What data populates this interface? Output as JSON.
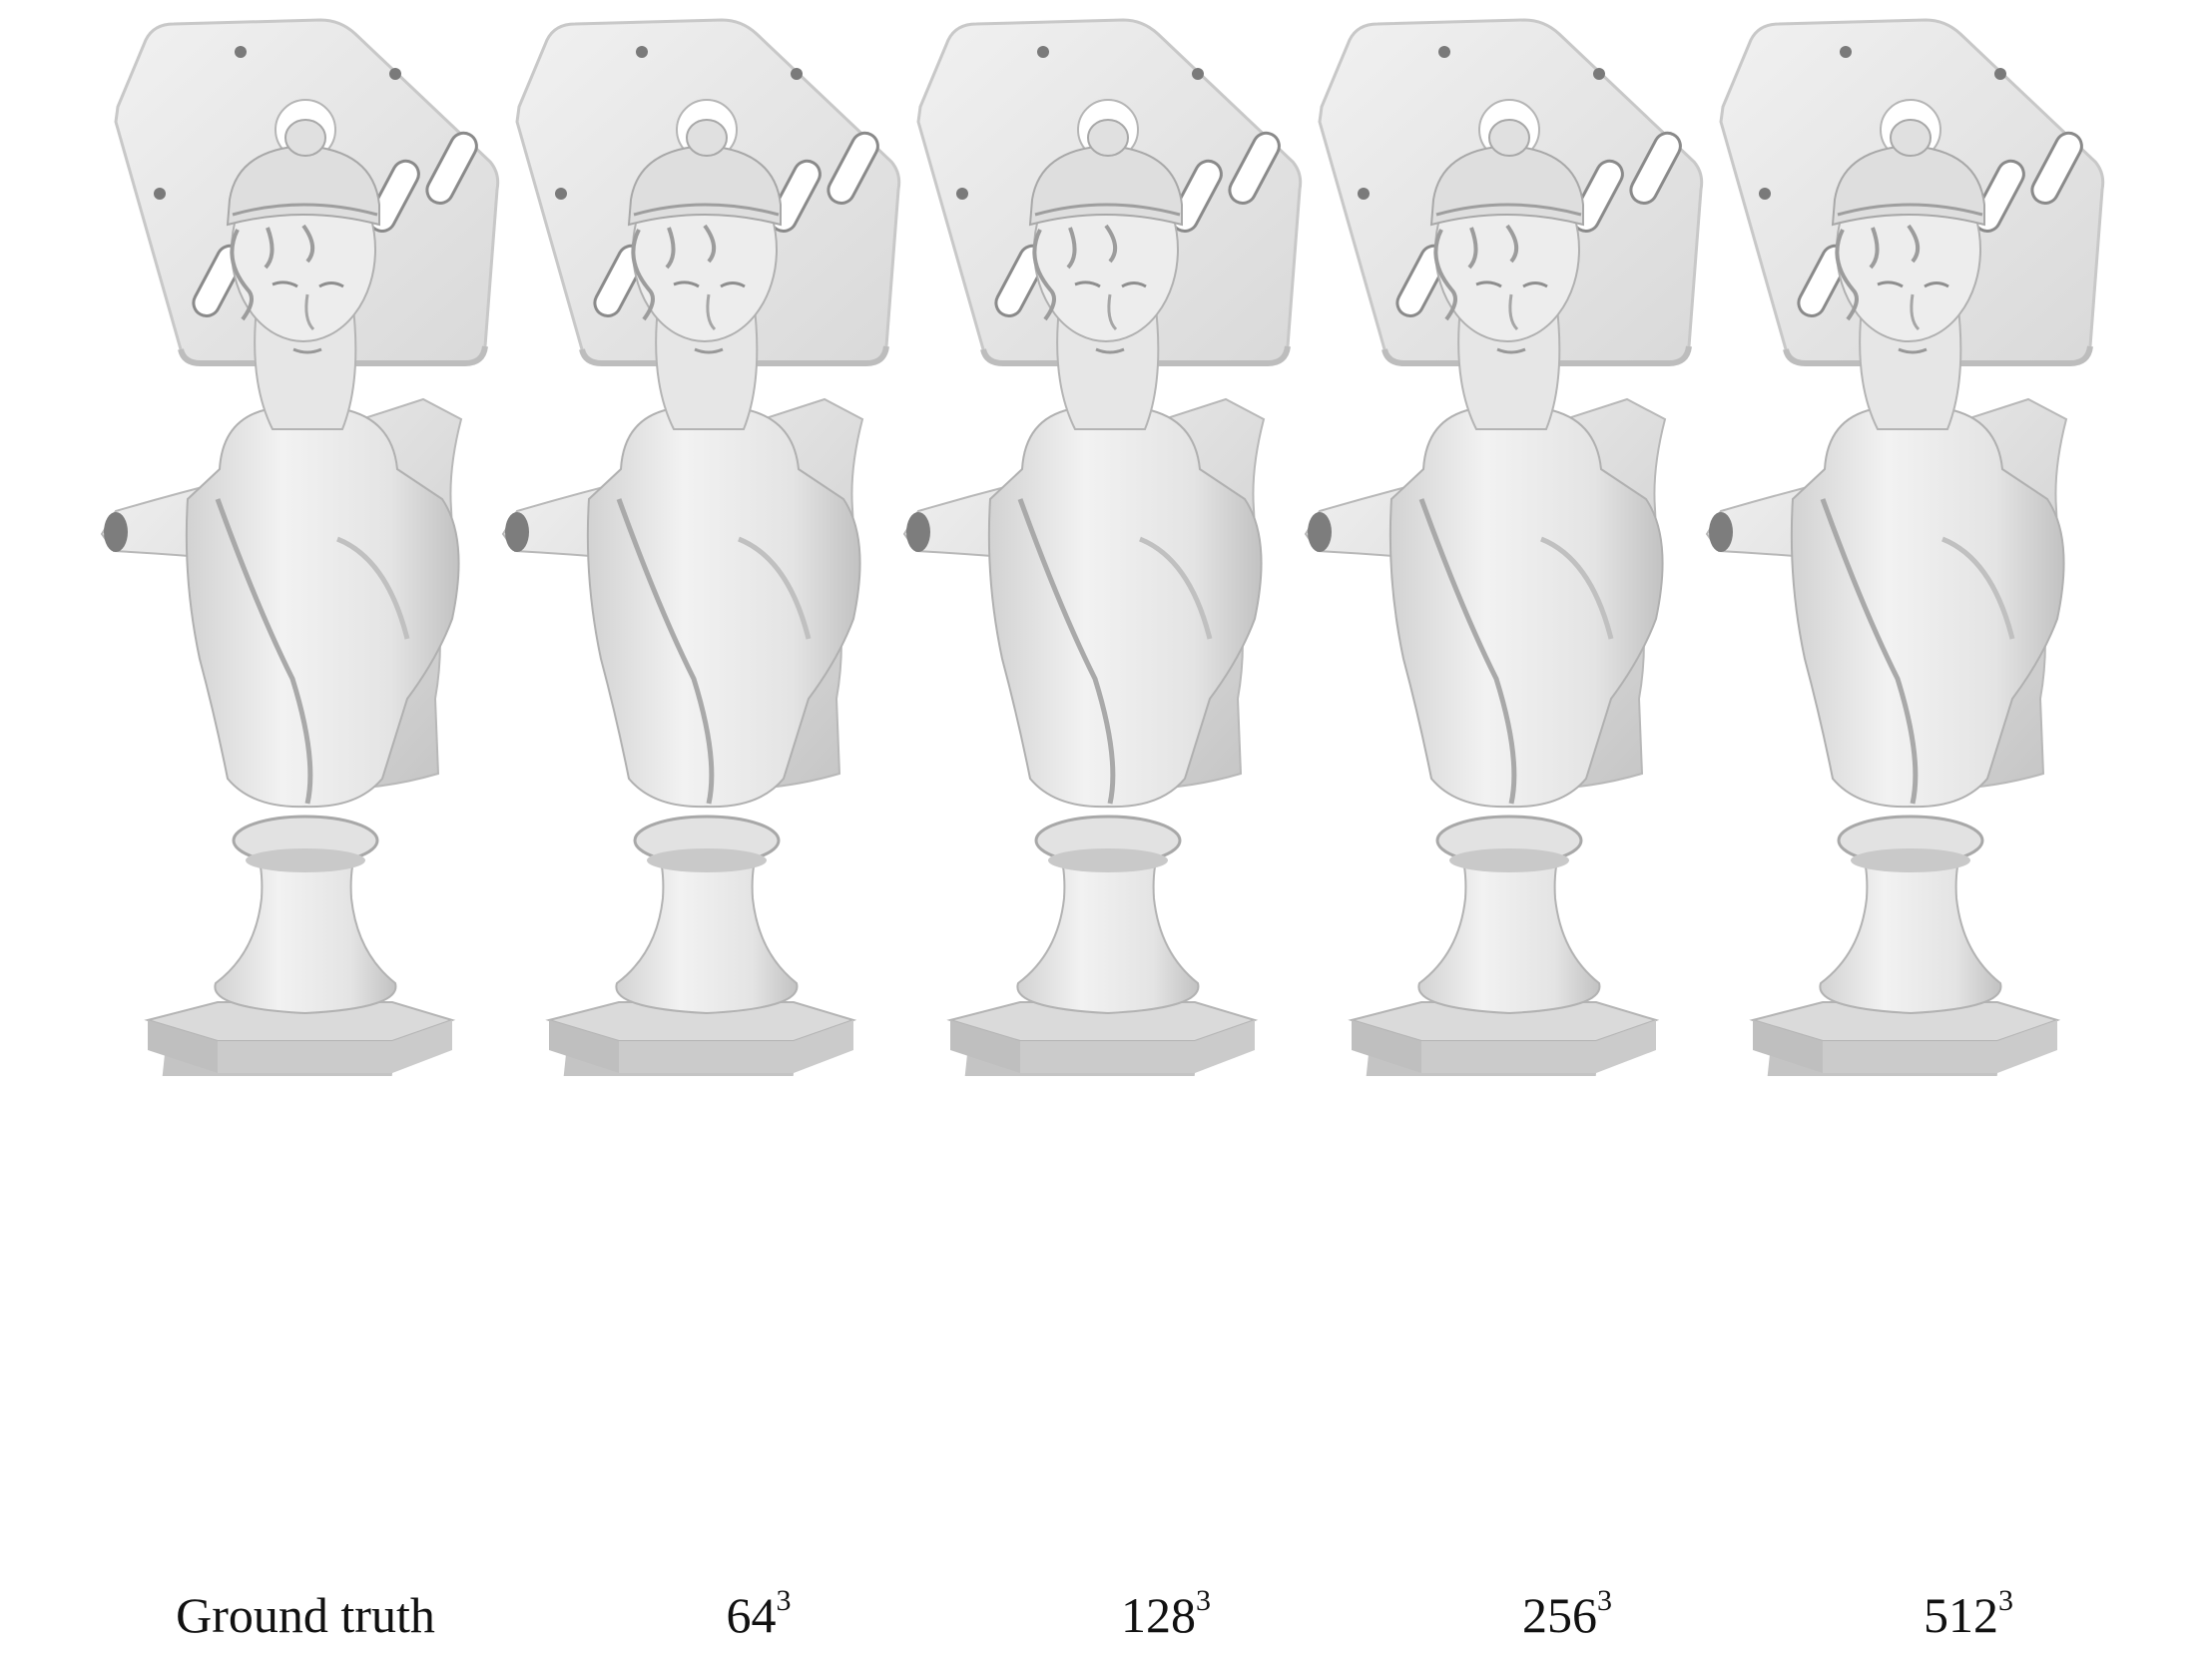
{
  "figure": {
    "rows": [
      "plate",
      "shirt",
      "bust"
    ],
    "columns": [
      {
        "label": "Ground truth",
        "base": "",
        "exponent": ""
      },
      {
        "label": "",
        "base": "64",
        "exponent": "3"
      },
      {
        "label": "",
        "base": "128",
        "exponent": "3"
      },
      {
        "label": "",
        "base": "256",
        "exponent": "3"
      },
      {
        "label": "",
        "base": "512",
        "exponent": "3"
      }
    ]
  }
}
